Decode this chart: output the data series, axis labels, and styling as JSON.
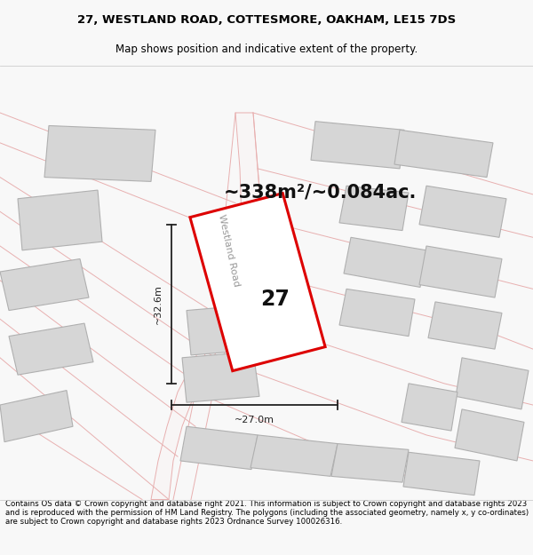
{
  "title_line1": "27, WESTLAND ROAD, COTTESMORE, OAKHAM, LE15 7DS",
  "title_line2": "Map shows position and indicative extent of the property.",
  "area_text": "~338m²/~0.084ac.",
  "label_27": "27",
  "dim_height": "~32.6m",
  "dim_width": "~27.0m",
  "road_label": "Westland Road",
  "footer_text": "Contains OS data © Crown copyright and database right 2021. This information is subject to Crown copyright and database rights 2023 and is reproduced with the permission of HM Land Registry. The polygons (including the associated geometry, namely x, y co-ordinates) are subject to Crown copyright and database rights 2023 Ordnance Survey 100026316.",
  "map_bg": "#f0eeee",
  "plot_outline_color": "#dd0000",
  "plot_fill": "#ffffff",
  "neighbor_fill": "#d6d6d6",
  "neighbor_outline": "#b0b0b0",
  "road_line_color": "#e8b0b0",
  "dim_line_color": "#222222",
  "title_fontsize": 9.5,
  "subtitle_fontsize": 8.5,
  "area_fontsize": 15,
  "label_fontsize": 17,
  "dim_fontsize": 8,
  "road_fontsize": 8,
  "footer_fontsize": 6.2
}
